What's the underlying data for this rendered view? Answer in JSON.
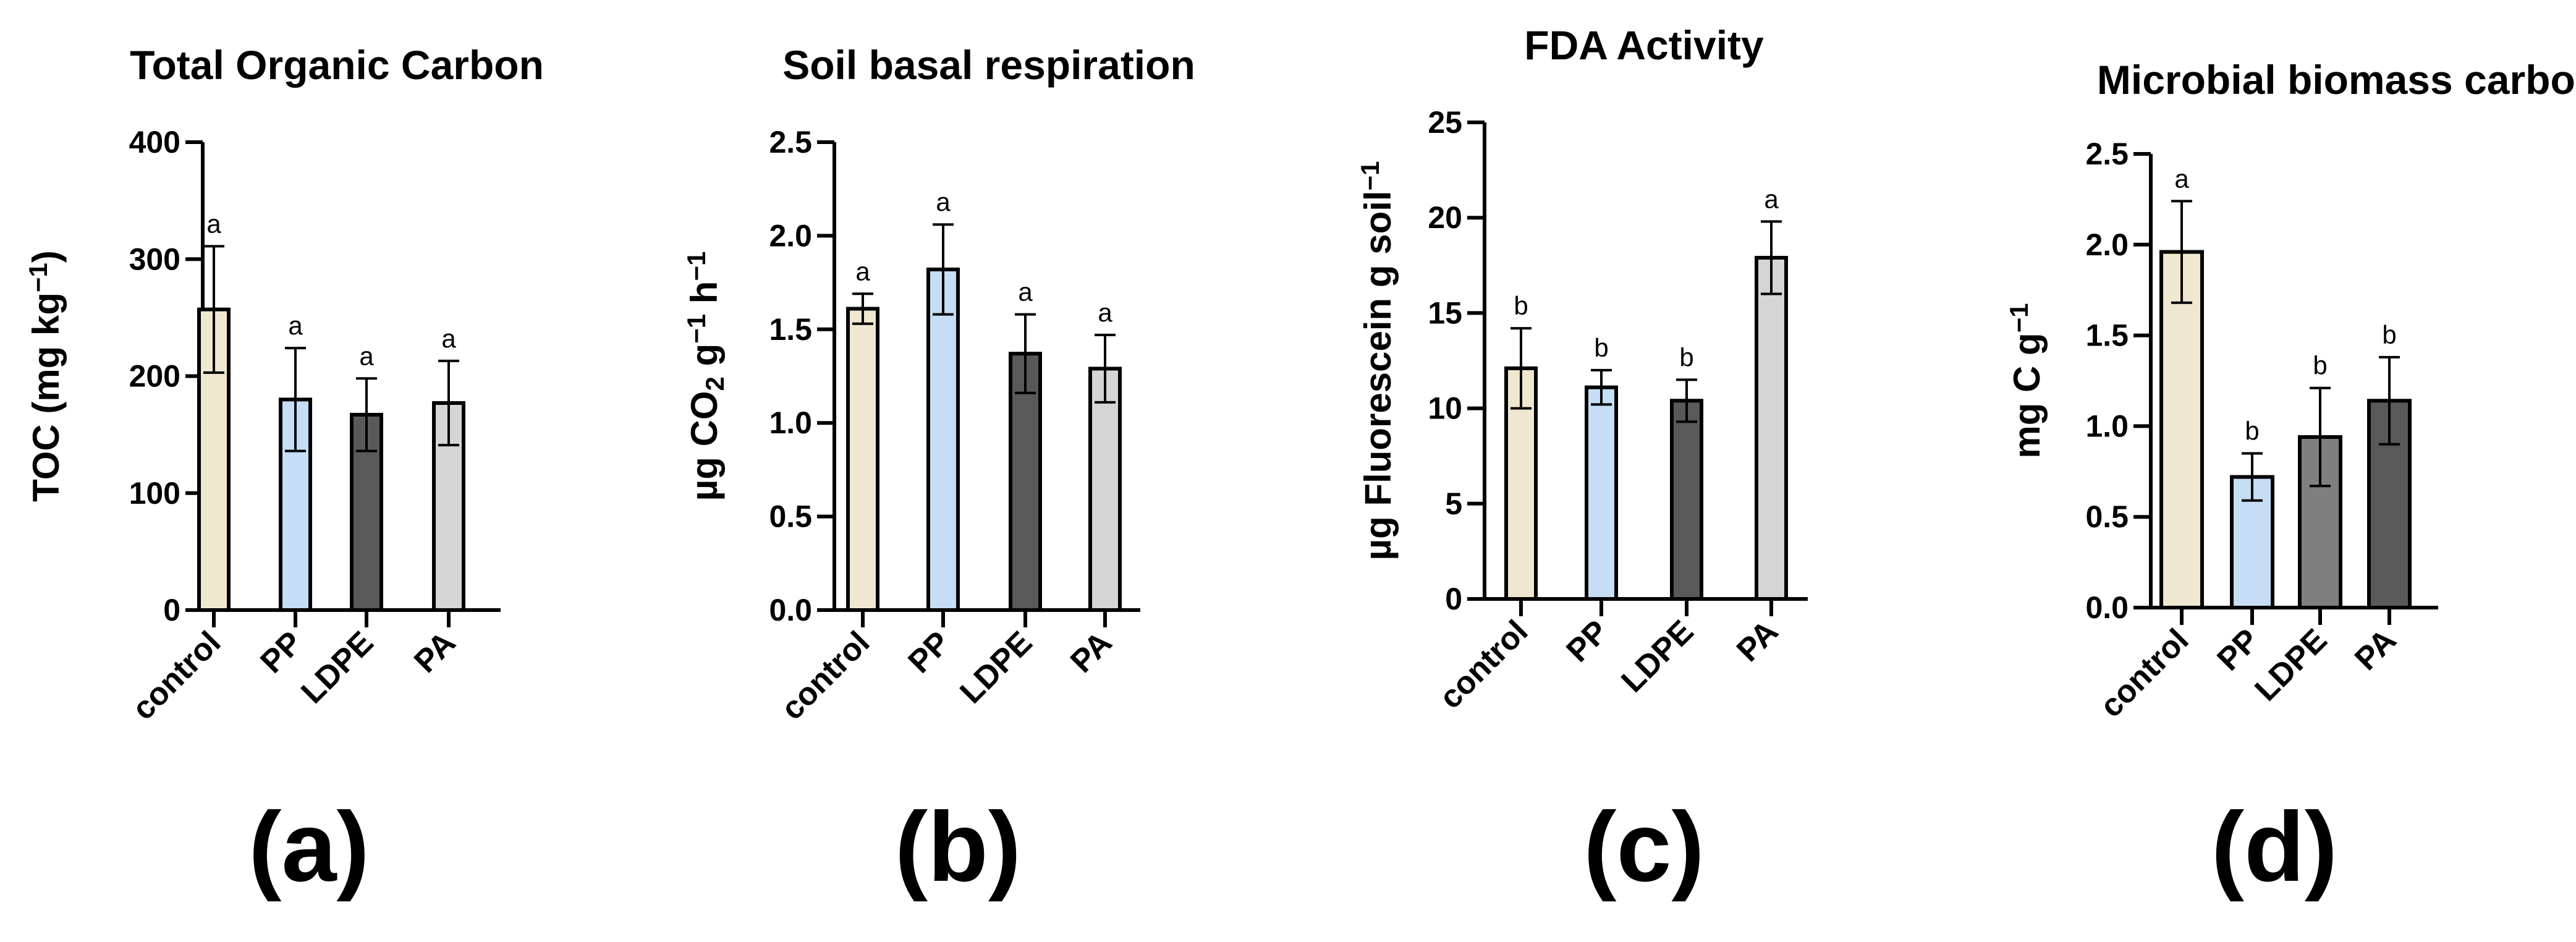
{
  "chart_data": [
    {
      "type": "bar",
      "title": "Total Organic Carbon",
      "ylabel_parts": [
        {
          "t": "TOC (mg kg",
          "s": "n"
        },
        {
          "t": "−1",
          "s": "sup"
        },
        {
          "t": ")",
          "s": "n"
        }
      ],
      "categories": [
        "control",
        "PP",
        "LDPE",
        "PA"
      ],
      "values": [
        257,
        180,
        167,
        177
      ],
      "errors": [
        54,
        44,
        31,
        36
      ],
      "sig_letters": [
        "a",
        "a",
        "a",
        "a"
      ],
      "colors": [
        "#efe7cf",
        "#c5def6",
        "#595959",
        "#d5d5d5"
      ],
      "ylim": [
        0,
        400
      ],
      "yticks": [
        "0",
        "100",
        "200",
        "300",
        "400"
      ],
      "panel_label": "(a)",
      "grid": false,
      "legend": "none"
    },
    {
      "type": "bar",
      "title": "Soil basal respiration",
      "ylabel_parts": [
        {
          "t": "µg CO",
          "s": "n"
        },
        {
          "t": "2",
          "s": "sub"
        },
        {
          "t": " g",
          "s": "n"
        },
        {
          "t": "−1",
          "s": "sup"
        },
        {
          "t": " h",
          "s": "n"
        },
        {
          "t": "−1",
          "s": "sup"
        }
      ],
      "categories": [
        "control",
        "PP",
        "LDPE",
        "PA"
      ],
      "values": [
        1.61,
        1.82,
        1.37,
        1.29
      ],
      "errors": [
        0.08,
        0.24,
        0.21,
        0.18
      ],
      "sig_letters": [
        "a",
        "a",
        "a",
        "a"
      ],
      "colors": [
        "#efe7cf",
        "#c5def6",
        "#595959",
        "#d5d5d5"
      ],
      "ylim": [
        0,
        2.5
      ],
      "yticks": [
        "0.0",
        "0.5",
        "1.0",
        "1.5",
        "2.0",
        "2.5"
      ],
      "panel_label": "(b)",
      "grid": false,
      "legend": "none"
    },
    {
      "type": "bar",
      "title": "FDA Activity",
      "ylabel_parts": [
        {
          "t": "µg Fluorescein g soil",
          "s": "n"
        },
        {
          "t": "−1",
          "s": "sup"
        }
      ],
      "categories": [
        "control",
        "PP",
        "LDPE",
        "PA"
      ],
      "values": [
        12.1,
        11.1,
        10.4,
        17.9
      ],
      "errors": [
        2.1,
        0.9,
        1.1,
        1.9
      ],
      "sig_letters": [
        "b",
        "b",
        "b",
        "a"
      ],
      "colors": [
        "#efe7cf",
        "#c5def6",
        "#595959",
        "#d5d5d5"
      ],
      "ylim": [
        0,
        25
      ],
      "yticks": [
        "0",
        "5",
        "10",
        "15",
        "20",
        "25"
      ],
      "panel_label": "(c)",
      "grid": false,
      "legend": "none"
    },
    {
      "type": "bar",
      "title": "Microbial biomass carbon",
      "ylabel_parts": [
        {
          "t": "mg C g",
          "s": "n"
        },
        {
          "t": "−1",
          "s": "sup"
        }
      ],
      "categories": [
        "control",
        "PP",
        "LDPE",
        "PA"
      ],
      "values": [
        1.96,
        0.72,
        0.94,
        1.14
      ],
      "errors": [
        0.28,
        0.13,
        0.27,
        0.24
      ],
      "sig_letters": [
        "a",
        "b",
        "b",
        "b"
      ],
      "colors": [
        "#efe7cf",
        "#c5def6",
        "#7f7f7f",
        "#595959"
      ],
      "ylim": [
        0,
        2.5
      ],
      "yticks": [
        "0.0",
        "0.5",
        "1.0",
        "1.5",
        "2.0",
        "2.5"
      ],
      "panel_label": "(d)",
      "grid": false,
      "legend": "none"
    }
  ]
}
